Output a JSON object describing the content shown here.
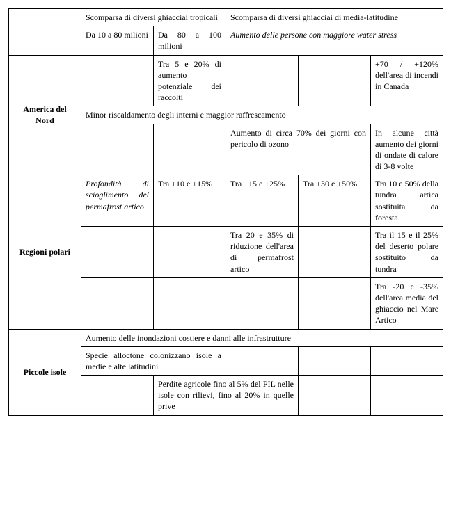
{
  "table": {
    "rows": {
      "top": {
        "r1c1_span2": "Scomparsa di diversi ghiacciai tropicali",
        "r1c3_span3": "Scomparsa di diversi ghiacciai di media-latitudine",
        "r2c1": "Da 10 a 80 milioni",
        "r2c2": "Da 80 a 100 milioni",
        "r2c3_span3_italic": "Aumento delle persone con maggiore water stress"
      },
      "america": {
        "header": "America del Nord",
        "r1c2": "Tra 5 e 20% di aumento potenziale dei raccolti",
        "r1c5": "+70 / +120% dell'area di incendi in Canada",
        "r2_span5": "Minor riscaldamento degli interni e maggior raffrescamento",
        "r3c3_span2": "Aumento di circa 70% dei giorni con pericolo di ozono",
        "r3c5": "In alcune città aumento dei giorni di ondate di calore di 3-8 volte"
      },
      "polari": {
        "header": "Regioni polari",
        "r1c1_italic": "Profondità di scioglimento del permafrost artico",
        "r1c2": "Tra +10 e +15%",
        "r1c3": "Tra +15 e +25%",
        "r1c4": "Tra +30 e +50%",
        "r1c5": "Tra 10 e 50% della tundra artica sostituita da foresta",
        "r2c3": "Tra 20 e 35% di riduzione dell'area di permafrost artico",
        "r2c5": "Tra il 15 e il 25% del deserto polare sostituito da tundra",
        "r3c5": "Tra -20 e -35% dell'area media del ghiaccio nel Mare Artico"
      },
      "isole": {
        "header": "Piccole isole",
        "r1_span5": "Aumento delle inondazioni costiere e danni alle infrastrutture",
        "r2c1_span2": "Specie alloctone colonizzano isole a medie e alte latitudini",
        "r3c2_span2": "Perdite agricole fino al 5% del PIL nelle isole con rilievi, fino al 20% in quelle prive"
      }
    }
  }
}
